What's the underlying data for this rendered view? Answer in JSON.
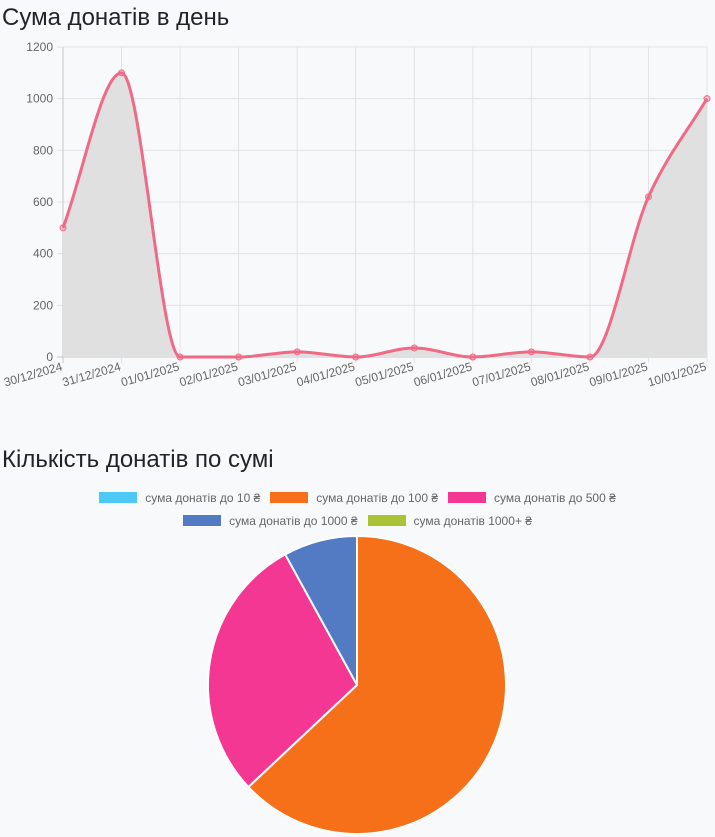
{
  "line_section": {
    "title": "Сума донатів в день"
  },
  "pie_section": {
    "title": "Кількість донатів по сумі"
  },
  "chart_data": [
    {
      "type": "line",
      "title": "Сума донатів в день",
      "x": [
        "30/12/2024",
        "31/12/2024",
        "01/01/2025",
        "02/01/2025",
        "03/01/2025",
        "04/01/2025",
        "05/01/2025",
        "06/01/2025",
        "07/01/2025",
        "08/01/2025",
        "09/01/2025",
        "10/01/2025"
      ],
      "series": [
        {
          "values": [
            500,
            1100,
            0,
            0,
            20,
            0,
            35,
            0,
            20,
            0,
            620,
            1000
          ],
          "color": "#f06a85",
          "fill": "#e0e0e0"
        }
      ],
      "y_ticks": [
        0,
        200,
        400,
        600,
        800,
        1000,
        1200
      ],
      "ylim": [
        0,
        1200
      ],
      "grid": true,
      "area_fill": true,
      "curve": "smooth"
    },
    {
      "type": "pie",
      "title": "Кількість донатів по сумі",
      "legend_position": "top",
      "labels": [
        "сума донатів до 10 ₴",
        "сума донатів до 100 ₴",
        "сума донатів до 500 ₴",
        "сума донатів до 1000 ₴",
        "сума донатів 1000+ ₴"
      ],
      "values": [
        0,
        63,
        29,
        8,
        0
      ],
      "colors": [
        "#4dc9f6",
        "#f67019",
        "#f53794",
        "#537bc4",
        "#acc236"
      ]
    }
  ]
}
